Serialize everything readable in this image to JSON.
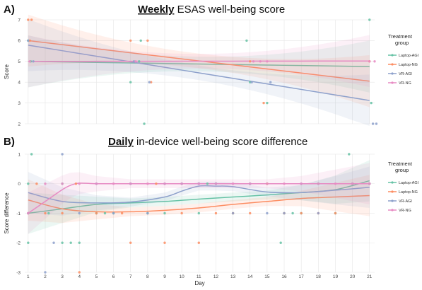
{
  "colors": {
    "Laptop-AGI": "#66c2a5",
    "Laptop-NG": "#fc8d62",
    "VR-AGI": "#8da0cb",
    "VR-NG": "#e78ac3"
  },
  "legend": {
    "title_line1": "Treatment",
    "title_line2": "group",
    "items": [
      "Laptop-AGI",
      "Laptop-NG",
      "VR-AGI",
      "VR-NG"
    ]
  },
  "chart_data": [
    {
      "type": "scatter",
      "panel_letter": "A)",
      "title_bold": "Weekly",
      "title_rest": " ESAS well-being score",
      "xlabel": "",
      "ylabel": "Score",
      "xlim": [
        0.8,
        21.3
      ],
      "ylim": [
        2,
        7
      ],
      "x_ticks": [],
      "y_ticks": [
        2,
        3,
        4,
        5,
        6,
        7
      ],
      "grid": true,
      "trend": "linear",
      "series": [
        {
          "name": "Laptop-AGI",
          "x": [
            1,
            1.15,
            7.0,
            7.6,
            7.8,
            13.8,
            15.0,
            21.0,
            21.1,
            7.5,
            14.0
          ],
          "y": [
            6,
            5,
            4,
            6,
            2,
            6,
            3,
            7,
            3,
            5,
            4
          ],
          "fit": [
            5.0,
            4.75
          ]
        },
        {
          "name": "Laptop-NG",
          "x": [
            1.0,
            1.2,
            7.0,
            8.0,
            14.0,
            14.8,
            21.0,
            1.1,
            8.2
          ],
          "y": [
            7,
            7,
            6,
            6,
            5,
            3,
            5,
            6,
            4
          ],
          "fit": [
            6.0,
            4.05
          ]
        },
        {
          "name": "VR-AGI",
          "x": [
            1.0,
            1.3,
            7.2,
            8.1,
            14.1,
            15.2,
            21.2,
            21.4
          ],
          "y": [
            6,
            5,
            5,
            4,
            4,
            4,
            2,
            2
          ],
          "fit": [
            5.78,
            3.12
          ]
        },
        {
          "name": "VR-NG",
          "x": [
            1.1,
            7.3,
            14.2,
            14.6,
            15.0,
            21.0,
            21.3
          ],
          "y": [
            5,
            5,
            5,
            5,
            5,
            5,
            5
          ],
          "fit": [
            5.0,
            5.02
          ]
        }
      ]
    },
    {
      "type": "scatter",
      "panel_letter": "B)",
      "title_bold": "Daily",
      "title_rest": " in-device well-being score difference",
      "xlabel": "Day",
      "ylabel": "Score difference",
      "xlim": [
        0.8,
        21.3
      ],
      "ylim": [
        -3,
        1
      ],
      "x_ticks": [
        1,
        2,
        3,
        4,
        5,
        6,
        7,
        8,
        9,
        10,
        11,
        12,
        13,
        14,
        15,
        16,
        17,
        18,
        19,
        20,
        21
      ],
      "y_ticks": [
        -3,
        -2,
        -1,
        0,
        1
      ],
      "grid": true,
      "trend": "loess",
      "series": [
        {
          "name": "Laptop-AGI",
          "x": [
            1.0,
            1.2,
            2.2,
            3.0,
            3.5,
            4.0,
            5.0,
            6.0,
            7.0,
            8.0,
            9.0,
            10.0,
            11.0,
            12.0,
            13.0,
            14.0,
            15.0,
            15.8,
            16.0,
            17.0,
            18.0,
            19.0,
            19.8,
            20.0,
            21.0,
            1.0,
            3.0,
            5.5,
            11.5,
            16.5
          ],
          "y": [
            -2,
            1,
            -1,
            0,
            -2,
            -2,
            -1,
            -1,
            0,
            -1,
            -1,
            0,
            -1,
            0,
            -1,
            0,
            0,
            -2,
            -1,
            -1,
            0,
            -1,
            1,
            0,
            0,
            0,
            -2,
            -1,
            0,
            -1
          ],
          "fit_x": [
            1,
            3,
            5,
            7,
            9,
            11,
            13,
            15,
            17,
            19,
            21
          ],
          "fit_y": [
            -1.0,
            -0.85,
            -0.7,
            -0.65,
            -0.6,
            -0.52,
            -0.45,
            -0.38,
            -0.3,
            -0.2,
            0.1
          ]
        },
        {
          "name": "Laptop-NG",
          "x": [
            1.0,
            2.0,
            3.0,
            4.0,
            5.0,
            7.0,
            9.0,
            10.0,
            12.0,
            14.0,
            16.0,
            17.0,
            18.0,
            20.0,
            21.0,
            1.5,
            3.8,
            6.5,
            8.5,
            11.0,
            13.0,
            15.0,
            19.0
          ],
          "y": [
            -1,
            -1,
            -1,
            -3,
            -1,
            -2,
            -2,
            -1,
            -1,
            -1,
            -1,
            -1,
            -1,
            0,
            0,
            0,
            0,
            -1,
            0,
            -2,
            -1,
            0,
            -1
          ],
          "fit_x": [
            1,
            3,
            5,
            7,
            9,
            11,
            13,
            15,
            17,
            19,
            21
          ],
          "fit_y": [
            -0.55,
            -0.85,
            -0.95,
            -0.95,
            -0.9,
            -0.82,
            -0.7,
            -0.6,
            -0.5,
            -0.45,
            -0.4
          ]
        },
        {
          "name": "VR-AGI",
          "x": [
            1.0,
            2.0,
            2.5,
            3.0,
            4.0,
            5.0,
            6.0,
            7.0,
            8.0,
            9.0,
            10.0,
            11.0,
            12.0,
            13.0,
            14.0,
            15.0,
            16.0,
            17.0,
            18.0,
            20.0,
            21.0
          ],
          "y": [
            -1,
            -3,
            -2,
            1,
            -1,
            0,
            -1,
            0,
            -1,
            0,
            0,
            0,
            0,
            -1,
            0,
            -1,
            -1,
            0,
            -1,
            0,
            0
          ],
          "fit_x": [
            1,
            3,
            5,
            7,
            9,
            10,
            11,
            12,
            13,
            15,
            17,
            19,
            21
          ],
          "fit_y": [
            -0.3,
            -0.6,
            -0.65,
            -0.62,
            -0.45,
            -0.25,
            -0.08,
            -0.08,
            -0.1,
            -0.28,
            -0.3,
            -0.22,
            -0.12
          ]
        },
        {
          "name": "VR-NG",
          "x": [
            1.0,
            2.0,
            3.0,
            4.0,
            5.0,
            6.0,
            7.0,
            8.0,
            9.0,
            10.0,
            11.0,
            12.0,
            13.0,
            14.0,
            15.0,
            16.0,
            17.0,
            18.0,
            19.0,
            20.0,
            21.0
          ],
          "y": [
            -1,
            0,
            0,
            0,
            0,
            0,
            0,
            0,
            0,
            0,
            0,
            0,
            0,
            0,
            0,
            0,
            0,
            0,
            0,
            0,
            0
          ],
          "fit_x": [
            1,
            2,
            3,
            3.5,
            4,
            5,
            7,
            9,
            11,
            13,
            15,
            17,
            19,
            21
          ],
          "fit_y": [
            -1.0,
            -0.6,
            -0.2,
            -0.05,
            0.02,
            0.0,
            0.0,
            0.0,
            0.0,
            0.0,
            0.0,
            0.0,
            0.0,
            0.0
          ]
        }
      ]
    }
  ]
}
